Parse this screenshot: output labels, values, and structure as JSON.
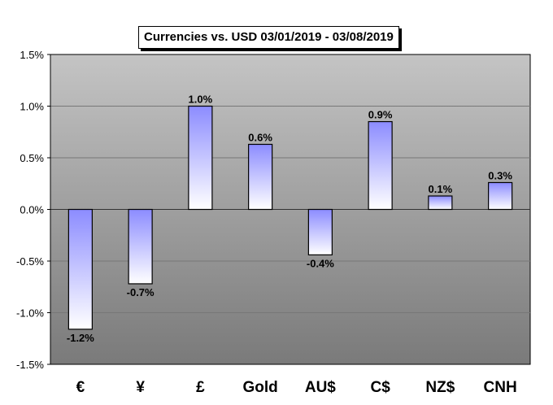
{
  "chart_data": {
    "type": "bar",
    "title": "Currencies vs. USD 03/01/2019 - 03/08/2019",
    "categories": [
      "€",
      "¥",
      "£",
      "Gold",
      "AU$",
      "C$",
      "NZ$",
      "CNH"
    ],
    "values": [
      -1.16,
      -0.72,
      1.0,
      0.63,
      -0.44,
      0.85,
      0.13,
      0.26
    ],
    "data_labels": [
      "-1.2%",
      "-0.7%",
      "1.0%",
      "0.6%",
      "-0.4%",
      "0.9%",
      "0.1%",
      "0.3%"
    ],
    "ylim": [
      -1.5,
      1.5
    ],
    "yticks": [
      1.5,
      1.0,
      0.5,
      0.0,
      -0.5,
      -1.0,
      -1.5
    ],
    "ytick_labels": [
      "1.5%",
      "1.0%",
      "0.5%",
      "0.0%",
      "-0.5%",
      "-1.0%",
      "-1.5%"
    ],
    "xlabel": "",
    "ylabel": "",
    "grid": true,
    "legend": "none",
    "colors": {
      "bar_fill_top": "#8c8cff",
      "bar_fill_bottom": "#ffffff",
      "plot_bg_top": "#c4c4c4",
      "plot_bg_bottom": "#7a7a7a",
      "grid": "#777777"
    }
  }
}
